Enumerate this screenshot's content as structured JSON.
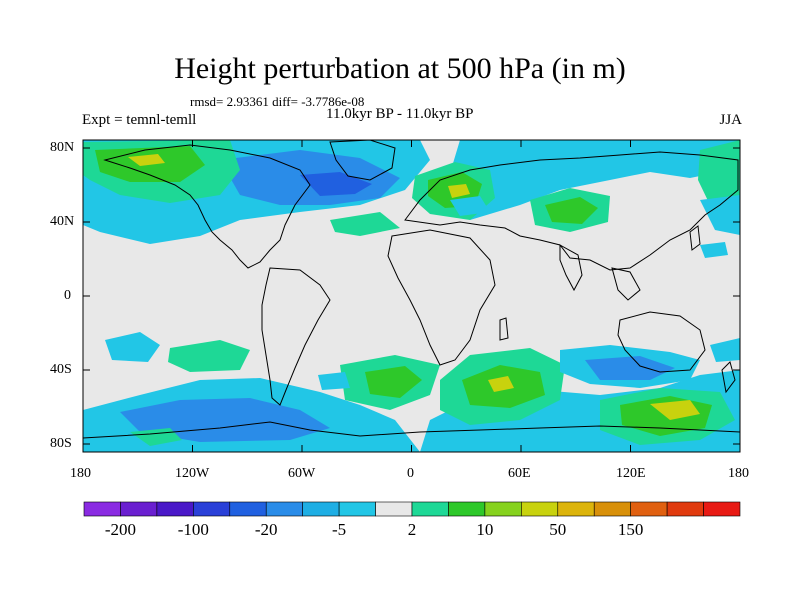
{
  "title": "Height perturbation at 500 hPa (in m)",
  "stats": "rmsd= 2.93361 diff= -3.7786e-08",
  "left_label": "Expt = temnl-temll",
  "center_label": "11.0kyr BP - 11.0kyr BP",
  "right_label": "JJA",
  "lat_ticks": [
    "80N",
    "40N",
    "0",
    "40S",
    "80S"
  ],
  "lon_ticks": [
    "180",
    "120W",
    "60W",
    "0",
    "60E",
    "120E",
    "180"
  ],
  "colorbar": {
    "colors": [
      "#8a2be2",
      "#6a1fd0",
      "#4a18c8",
      "#2a40d8",
      "#2060e0",
      "#2a8ce8",
      "#1eaee4",
      "#22c6e6",
      "#e8e8e8",
      "#1ed896",
      "#2ec82a",
      "#86d21e",
      "#c8d20e",
      "#dcb40c",
      "#d8900a",
      "#e06010",
      "#e03a0e",
      "#e81a14"
    ],
    "labels": [
      "-200",
      "-100",
      "-20",
      "-5",
      "2",
      "10",
      "50",
      "150"
    ]
  },
  "colors": {
    "neutral": "#e8e8e8",
    "light_blue": "#22c6e6",
    "mid_blue": "#2a8ce8",
    "dark_blue": "#2060e0",
    "green_light": "#1ed896",
    "green": "#2ec82a",
    "yellow_green": "#c8d20e"
  }
}
